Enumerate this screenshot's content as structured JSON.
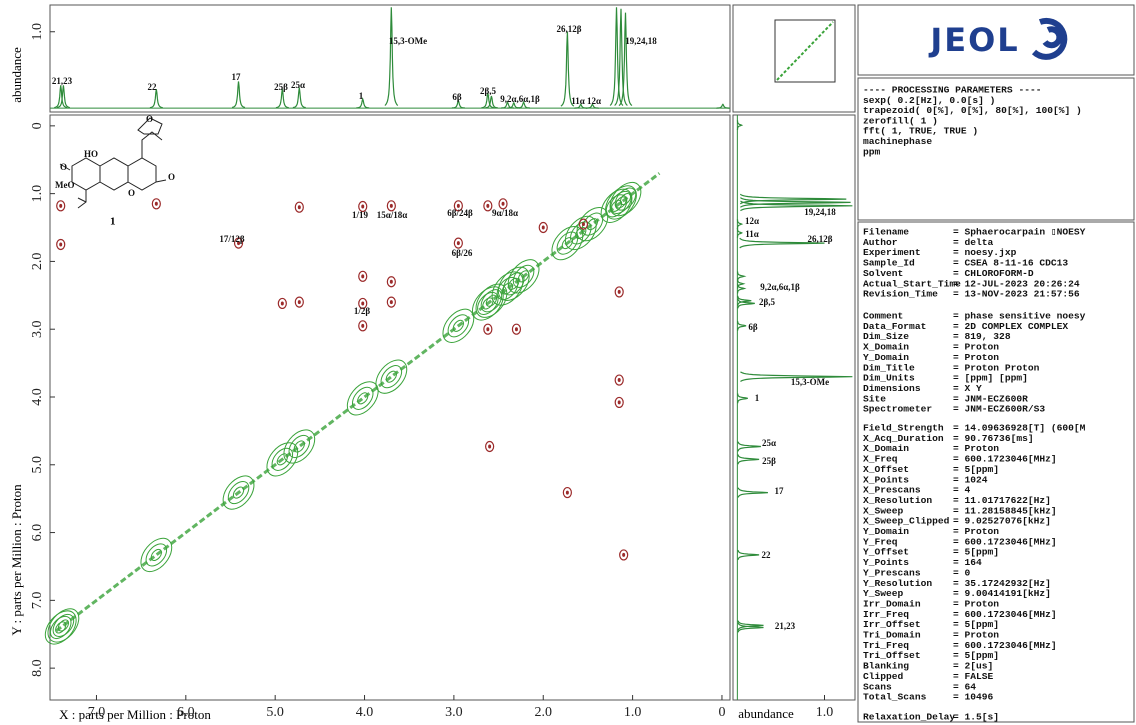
{
  "chart_data": {
    "type": "contour",
    "x_axis": {
      "label": "X : parts per Million : Proton",
      "lim": [
        7.52,
        -0.09
      ],
      "ticks": [
        {
          "value": 7,
          "label": "7.0"
        },
        {
          "value": 6,
          "label": "6.0"
        },
        {
          "value": 5,
          "label": "5.0"
        },
        {
          "value": 4,
          "label": "4.0"
        },
        {
          "value": 3,
          "label": "3.0"
        },
        {
          "value": 2,
          "label": "2.0"
        },
        {
          "value": 1,
          "label": "1.0"
        },
        0
      ]
    },
    "y_axis": {
      "label": "Y : parts per Million : Proton",
      "lim": [
        -0.16,
        8.47
      ],
      "ticks": [
        0,
        {
          "value": 1,
          "label": "1.0"
        },
        {
          "value": 2,
          "label": "2.0"
        },
        {
          "value": 3,
          "label": "3.0"
        },
        {
          "value": 4,
          "label": "4.0"
        },
        {
          "value": 5,
          "label": "5.0"
        },
        {
          "value": 6,
          "label": "6.0"
        },
        {
          "value": 7,
          "label": "7.0"
        },
        {
          "value": 8,
          "label": "8.0"
        }
      ]
    },
    "projection_axis": {
      "label": "abundance",
      "lim": [
        -0.05,
        1.35
      ],
      "ticks": [
        {
          "value": 1,
          "label": "1.0"
        }
      ]
    },
    "projection": {
      "color": "#2e8b3a",
      "ppm": [
        7.4,
        7.37,
        6.33,
        5.41,
        4.92,
        4.73,
        4.02,
        3.7,
        2.95,
        2.62,
        2.58,
        2.4,
        2.33,
        2.22,
        1.73,
        1.58,
        1.45,
        1.18,
        1.13,
        1.08,
        -0.01
      ],
      "height": [
        0.3,
        0.3,
        0.25,
        0.35,
        0.25,
        0.27,
        0.12,
        1.32,
        0.1,
        0.2,
        0.16,
        0.08,
        0.07,
        0.08,
        1.0,
        0.05,
        0.05,
        1.32,
        1.3,
        1.25,
        0.05
      ]
    },
    "cross_peaks": {
      "color": "#9b2a2a",
      "x": [
        4.02,
        3.7,
        2.95,
        2.62,
        2.45,
        6.33,
        4.73,
        5.41,
        4.02,
        4.02,
        4.02,
        2.95,
        3.7,
        3.7,
        4.73,
        4.92,
        2.62,
        2.3,
        1.15,
        1.15,
        1.15,
        1.73,
        1.1,
        2.6,
        7.4,
        7.4,
        2.0,
        1.55
      ],
      "y": [
        1.19,
        1.18,
        1.18,
        1.18,
        1.15,
        1.15,
        1.2,
        1.73,
        2.22,
        2.62,
        2.95,
        1.73,
        2.3,
        2.6,
        2.6,
        2.62,
        3.0,
        3.0,
        2.45,
        3.75,
        4.08,
        5.41,
        6.33,
        4.73,
        1.75,
        1.18,
        1.5,
        1.45
      ]
    },
    "diagonal_color": "#3aa33a",
    "projection_labels": [
      "21,23",
      "22",
      "17",
      "25β",
      "25α",
      "1",
      "15,3-OMe",
      "6β",
      "2β,5",
      "9,2α,6α,1β",
      "11α",
      "12α",
      "26,12β",
      "19,24,18"
    ],
    "side_labels": [
      "12α",
      "11α",
      "19,24,18",
      "26,12β",
      "9,2α,6α,1β",
      "2β,5",
      "6β",
      "15,3-OMe",
      "1",
      "25α",
      "25β",
      "17",
      "22",
      "21,23"
    ],
    "correlations": [
      "1/19",
      "15α/18α",
      "6β/24β",
      "9α/18α",
      "17/12β",
      "6β/26",
      "1/2β"
    ]
  },
  "structure": {
    "compound": "1",
    "labels": [
      "HO",
      "MeO",
      "O",
      "O",
      "O",
      "O"
    ]
  },
  "logo": "JEOL",
  "processing": [
    "---- PROCESSING PARAMETERS ----",
    "sexp( 0.2[Hz], 0.0[s] )",
    "trapezoid( 0[%], 0[%], 80[%], 100[%] )",
    "zerofill( 1 )",
    "fft( 1, TRUE, TRUE )",
    "machinephase",
    "ppm"
  ],
  "info": [
    [
      [
        "Filename",
        "= Sphaerocarpain ▯NOESY"
      ],
      [
        "Author",
        "= delta"
      ],
      [
        "Experiment",
        "= noesy.jxp"
      ],
      [
        "Sample_Id",
        "= CSEA 8-11-16 CDC13"
      ],
      [
        "Solvent",
        "= CHLOROFORM-D"
      ],
      [
        "Actual_Start_Time",
        "= 12-JUL-2023 20:26:24"
      ],
      [
        "Revision_Time",
        "= 13-NOV-2023 21:57:56"
      ]
    ],
    [
      [
        "Comment",
        "= phase sensitive noesy"
      ],
      [
        "Data_Format",
        "= 2D COMPLEX COMPLEX"
      ],
      [
        "Dim_Size",
        "= 819, 328"
      ],
      [
        "X_Domain",
        "= Proton"
      ],
      [
        "Y_Domain",
        "= Proton"
      ],
      [
        "Dim_Title",
        "= Proton Proton"
      ],
      [
        "Dim_Units",
        "= [ppm] [ppm]"
      ],
      [
        "Dimensions",
        "= X Y"
      ],
      [
        "Site",
        "= JNM-ECZ600R"
      ],
      [
        "Spectrometer",
        "= JNM-ECZ600R/S3"
      ]
    ],
    [
      [
        "Field_Strength",
        "= 14.09636928[T] (600[M"
      ],
      [
        "X_Acq_Duration",
        "= 90.76736[ms]"
      ],
      [
        "X_Domain",
        "= Proton"
      ],
      [
        "X_Freq",
        "= 600.1723046[MHz]"
      ],
      [
        "X_Offset",
        "= 5[ppm]"
      ],
      [
        "X_Points",
        "= 1024"
      ],
      [
        "X_Prescans",
        "= 4"
      ],
      [
        "X_Resolution",
        "= 11.01717622[Hz]"
      ],
      [
        "X_Sweep",
        "= 11.28158845[kHz]"
      ],
      [
        "X_Sweep_Clipped",
        "= 9.02527076[kHz]"
      ],
      [
        "Y_Domain",
        "= Proton"
      ],
      [
        "Y_Freq",
        "= 600.1723046[MHz]"
      ],
      [
        "Y_Offset",
        "= 5[ppm]"
      ],
      [
        "Y_Points",
        "= 164"
      ],
      [
        "Y_Prescans",
        "= 0"
      ],
      [
        "Y_Resolution",
        "= 35.17242932[Hz]"
      ],
      [
        "Y_Sweep",
        "= 9.00414191[kHz]"
      ],
      [
        "Irr_Domain",
        "= Proton"
      ],
      [
        "Irr_Freq",
        "= 600.1723046[MHz]"
      ],
      [
        "Irr_Offset",
        "= 5[ppm]"
      ],
      [
        "Tri_Domain",
        "= Proton"
      ],
      [
        "Tri_Freq",
        "= 600.1723046[MHz]"
      ],
      [
        "Tri_Offset",
        "= 5[ppm]"
      ],
      [
        "Blanking",
        "= 2[us]"
      ],
      [
        "Clipped",
        "= FALSE"
      ],
      [
        "Scans",
        "= 64"
      ],
      [
        "Total_Scans",
        "= 10496"
      ]
    ],
    [
      [
        "Relaxation_Delay",
        "= 1.5[s]"
      ]
    ]
  ]
}
